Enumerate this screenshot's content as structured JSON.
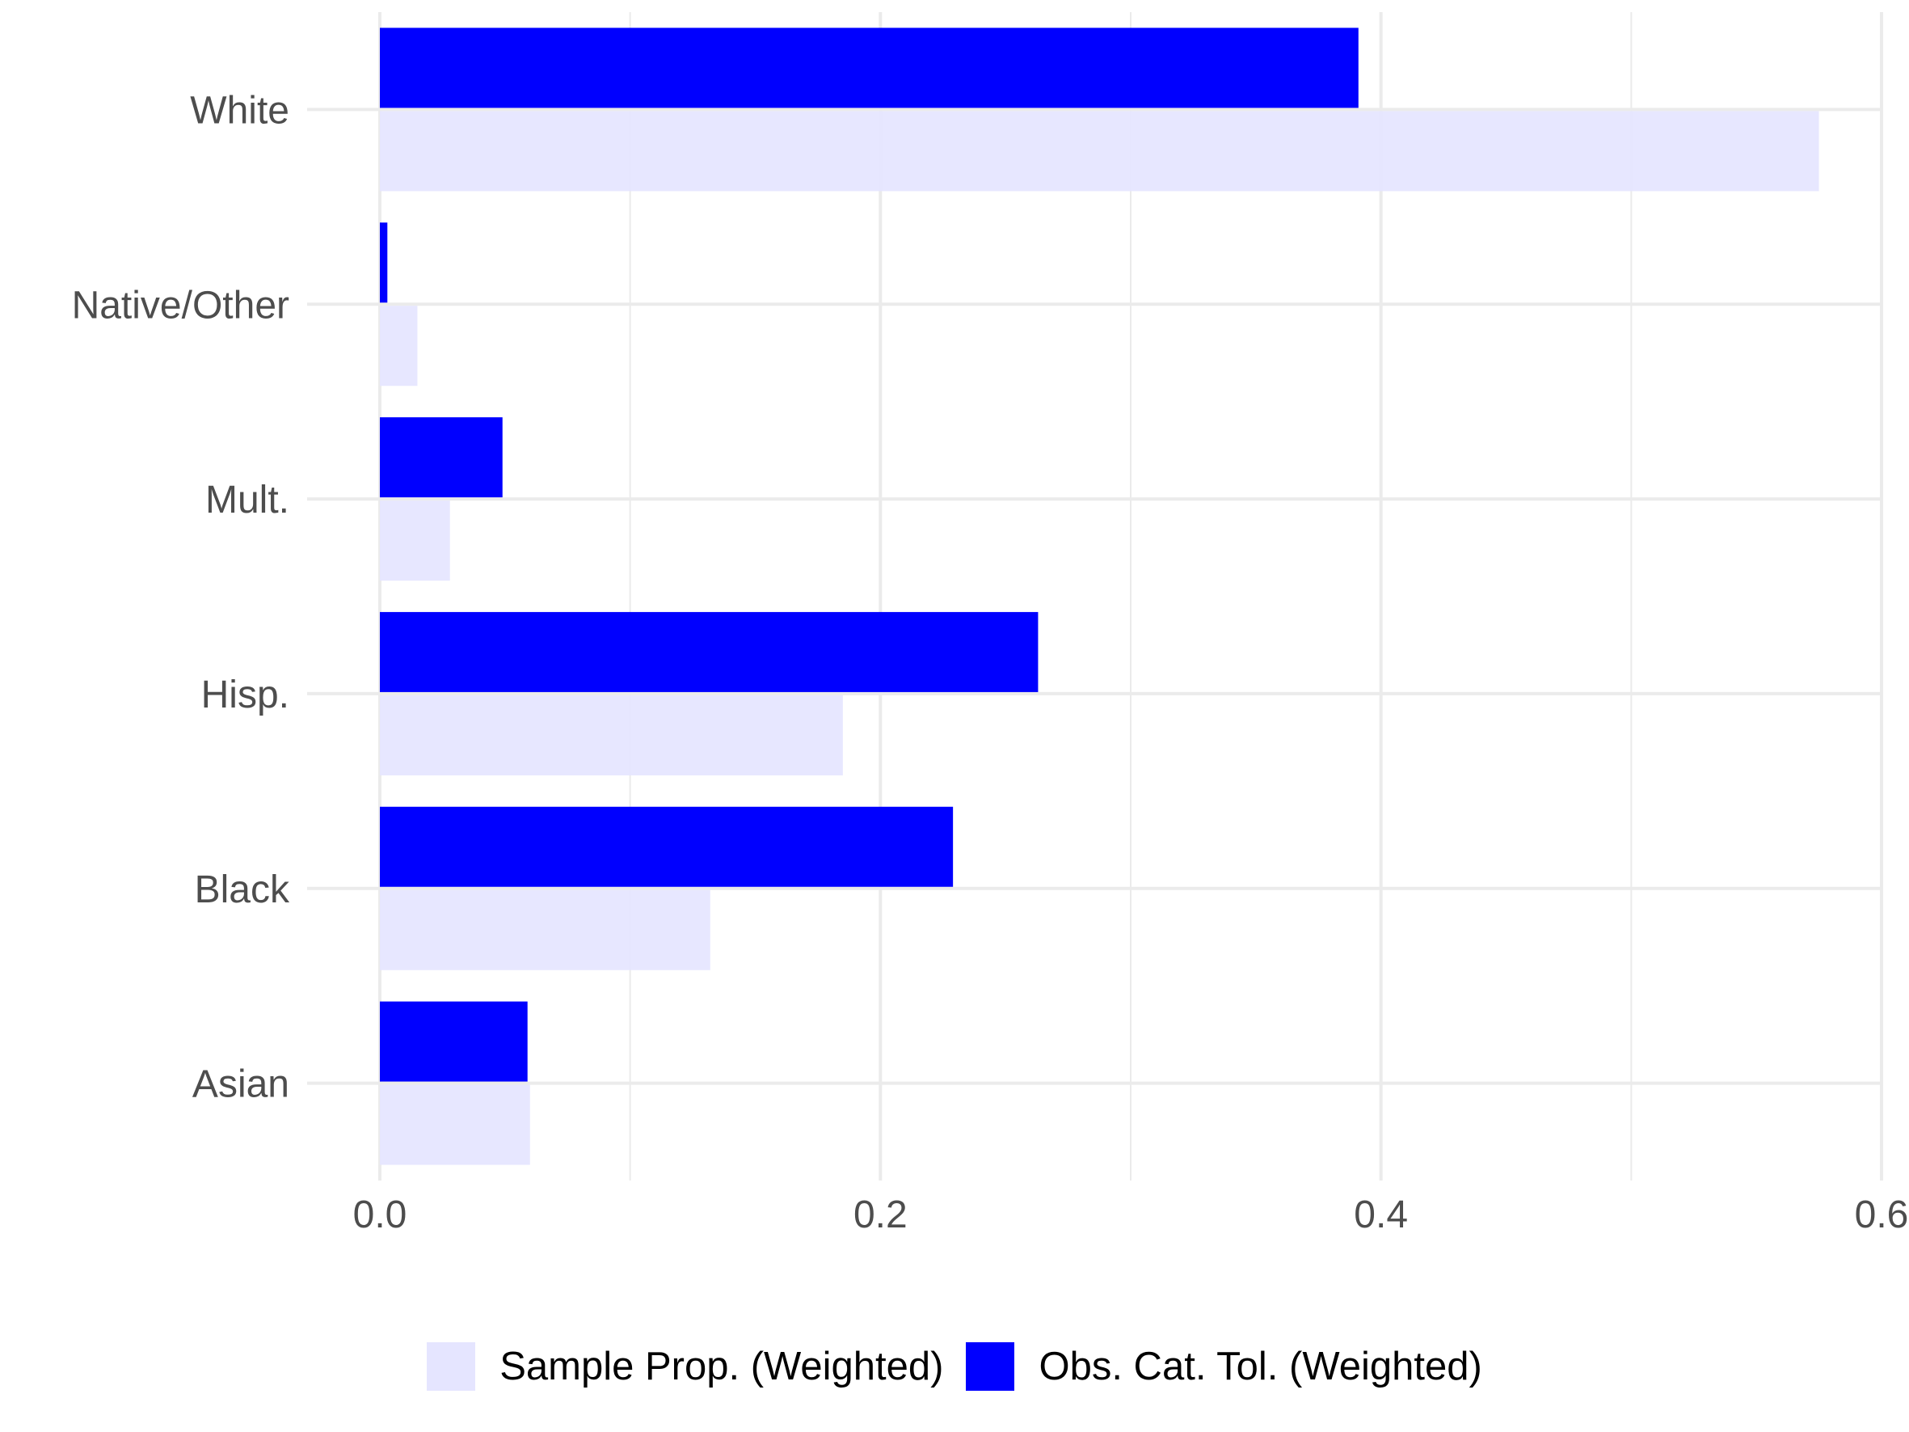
{
  "chart_data": {
    "type": "bar",
    "orientation": "horizontal",
    "categories": [
      "White",
      "Native/Other",
      "Mult.",
      "Hisp.",
      "Black",
      "Asian"
    ],
    "series": [
      {
        "name": "Obs. Cat. Tol. (Weighted)",
        "color": "#0000ff",
        "values": [
          0.391,
          0.003,
          0.049,
          0.263,
          0.229,
          0.059
        ]
      },
      {
        "name": "Sample Prop. (Weighted)",
        "color": "#e5e5ff",
        "values": [
          0.575,
          0.015,
          0.028,
          0.185,
          0.132,
          0.06
        ]
      }
    ],
    "xlim": [
      0,
      0.6
    ],
    "x_ticks": [
      "0.0",
      "0.2",
      "0.4",
      "0.6"
    ],
    "x_tick_values": [
      0,
      0.2,
      0.4,
      0.6
    ],
    "grid": true,
    "legend_position": "bottom",
    "legend": [
      {
        "label": "Sample Prop. (Weighted)",
        "color": "#e5e5ff"
      },
      {
        "label": "Obs. Cat. Tol. (Weighted)",
        "color": "#0000ff"
      }
    ]
  }
}
